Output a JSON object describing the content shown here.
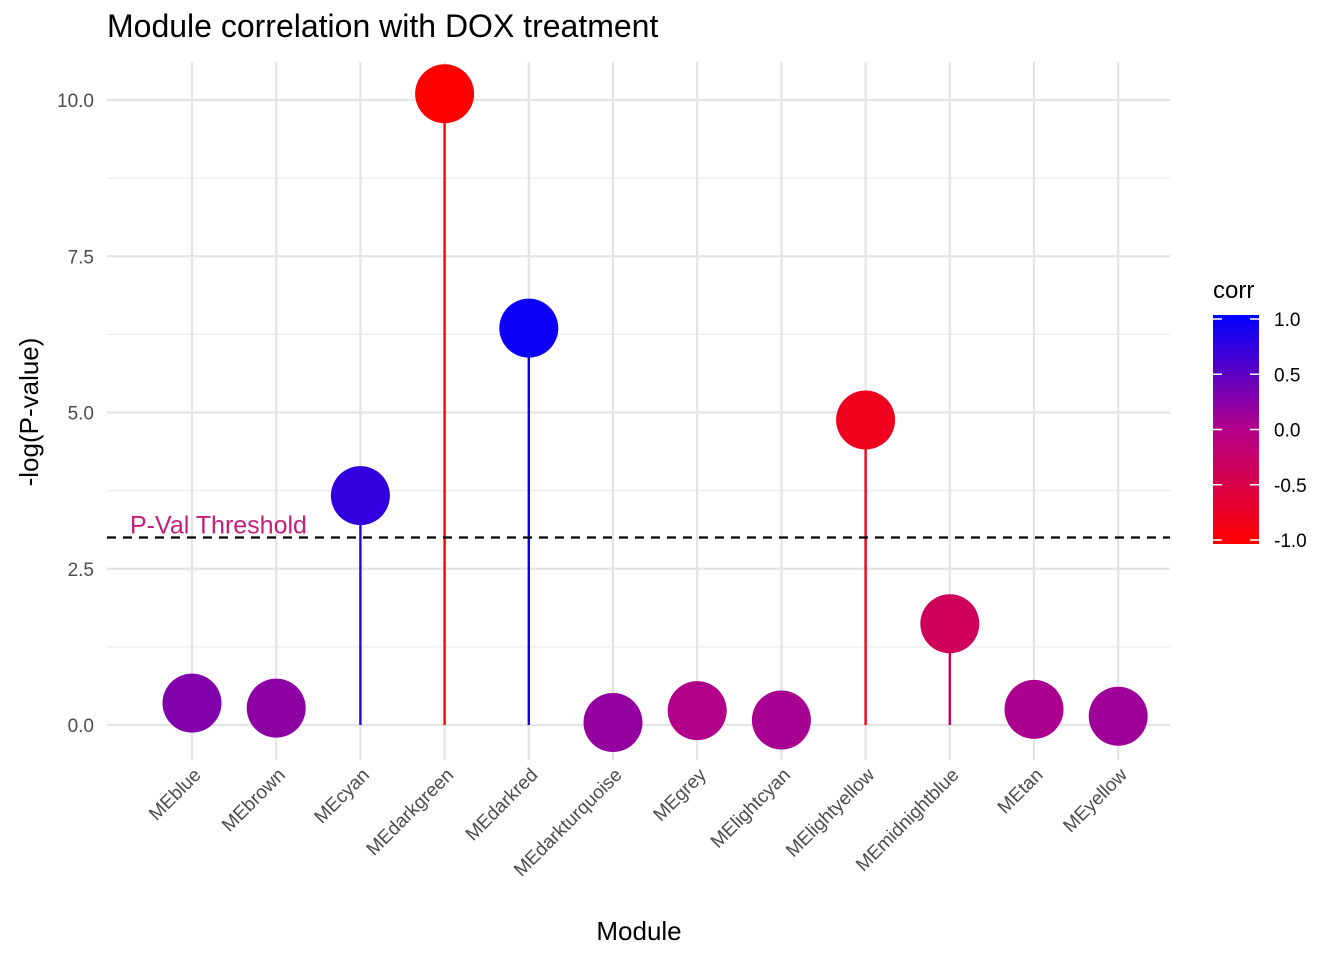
{
  "chart_data": {
    "type": "lollipop",
    "title": "Module correlation with DOX treatment",
    "xlabel": "Module",
    "ylabel": "-log(P-value)",
    "ylim": [
      -0.55,
      10.7
    ],
    "y_ticks": [
      0.0,
      2.5,
      5.0,
      7.5,
      10.0
    ],
    "y_tick_labels": [
      "0.0",
      "2.5",
      "5.0",
      "7.5",
      "10.0"
    ],
    "categories": [
      "MEblue",
      "MEbrown",
      "MEcyan",
      "MEdarkgreen",
      "MEdarkred",
      "MEdarkturquoise",
      "MEgrey",
      "MElightcyan",
      "MElightyellow",
      "MEmidnightblue",
      "MEtan",
      "MEyellow"
    ],
    "values": [
      0.35,
      0.27,
      3.67,
      10.1,
      6.35,
      0.04,
      0.23,
      0.08,
      4.88,
      1.62,
      0.25,
      0.14
    ],
    "corr": [
      0.28,
      0.22,
      0.72,
      -1.0,
      0.93,
      0.18,
      0.0,
      0.06,
      -0.8,
      -0.35,
      0.04,
      0.12
    ],
    "threshold": {
      "value": 3.0,
      "label": "P-Val Threshold",
      "label_color": "#c41e7a",
      "line_style": "dashed"
    },
    "legend": {
      "title": "corr",
      "position": "right",
      "ticks": [
        1.0,
        0.5,
        0.0,
        -0.5,
        -1.0
      ],
      "tick_labels": [
        "1.0",
        "0.5",
        "0.0",
        "-0.5",
        "-1.0"
      ],
      "color_low": "#ff0000",
      "color_high": "#0000ff"
    },
    "grid": true,
    "theme": "minimal"
  }
}
